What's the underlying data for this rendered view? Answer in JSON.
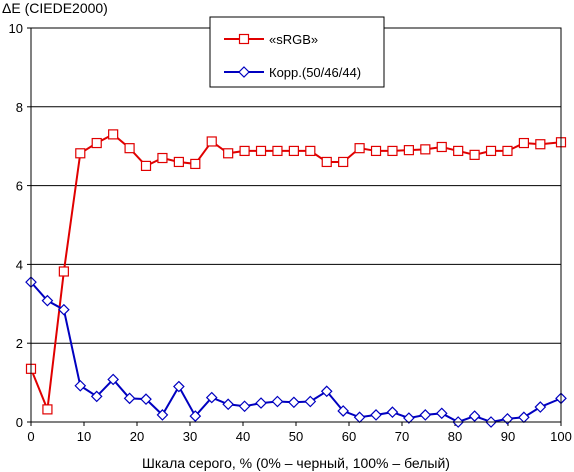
{
  "chart_data": {
    "type": "line",
    "ylabel": "ΔE (CIEDE2000)",
    "xlabel": "Шкала серого, % (0% – черный, 100% – белый)",
    "xlim": [
      0,
      100
    ],
    "ylim": [
      0,
      10
    ],
    "x_ticks": [
      "0",
      "10",
      "20",
      "30",
      "40",
      "50",
      "60",
      "70",
      "80",
      "90",
      "100"
    ],
    "y_ticks": [
      "0",
      "2",
      "4",
      "6",
      "8",
      "10"
    ],
    "grid": "horizontal",
    "legend_position": "top-center",
    "series": [
      {
        "name": "«sRGB»",
        "color": "#e00000",
        "marker": "square",
        "x": [
          0,
          3.1,
          6.2,
          9.3,
          12.4,
          15.5,
          18.6,
          21.7,
          24.8,
          27.9,
          31.0,
          34.1,
          37.2,
          40.3,
          43.4,
          46.5,
          49.6,
          52.7,
          55.8,
          58.9,
          62.0,
          65.1,
          68.2,
          71.3,
          74.4,
          77.5,
          80.6,
          83.7,
          86.8,
          89.9,
          93.0,
          96.1,
          100
        ],
        "values": [
          1.35,
          0.32,
          3.82,
          6.82,
          7.08,
          7.3,
          6.95,
          6.5,
          6.7,
          6.6,
          6.55,
          7.12,
          6.82,
          6.88,
          6.88,
          6.88,
          6.88,
          6.88,
          6.6,
          6.6,
          6.95,
          6.88,
          6.88,
          6.9,
          6.92,
          6.98,
          6.88,
          6.78,
          6.88,
          6.88,
          7.08,
          7.05,
          7.1
        ]
      },
      {
        "name": "Корр.(50/46/44)",
        "color": "#0000c0",
        "marker": "diamond",
        "x": [
          0,
          3.1,
          6.2,
          9.3,
          12.4,
          15.5,
          18.6,
          21.7,
          24.8,
          27.9,
          31.0,
          34.1,
          37.2,
          40.3,
          43.4,
          46.5,
          49.6,
          52.7,
          55.8,
          58.9,
          62.0,
          65.1,
          68.2,
          71.3,
          74.4,
          77.5,
          80.6,
          83.7,
          86.8,
          89.9,
          93.0,
          96.1,
          100
        ],
        "values": [
          3.55,
          3.08,
          2.85,
          0.92,
          0.65,
          1.08,
          0.6,
          0.58,
          0.18,
          0.9,
          0.15,
          0.62,
          0.45,
          0.4,
          0.48,
          0.52,
          0.5,
          0.52,
          0.78,
          0.28,
          0.12,
          0.18,
          0.25,
          0.1,
          0.18,
          0.22,
          0.0,
          0.15,
          0.0,
          0.08,
          0.12,
          0.38,
          0.6
        ]
      }
    ]
  }
}
